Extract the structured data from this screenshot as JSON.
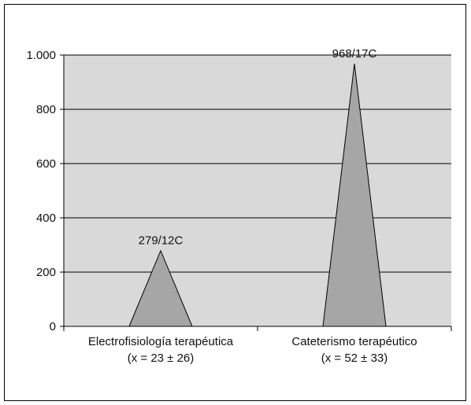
{
  "chart_data": {
    "type": "area",
    "categories": [
      {
        "line1": "Electrofisiología terapéutica",
        "line2": "(x = 23 ± 26)"
      },
      {
        "line1": "Cateterismo terapéutico",
        "line2": "(x = 52 ± 33)"
      }
    ],
    "values": [
      279,
      968
    ],
    "data_labels": [
      "279/12C",
      "968/17C"
    ],
    "yticks": [
      0,
      200,
      400,
      600,
      800,
      1000
    ],
    "ytick_labels": [
      "0",
      "200",
      "400",
      "600",
      "800",
      "1.000"
    ],
    "ylim": [
      0,
      1000
    ],
    "grid": true,
    "title": "",
    "xlabel": "",
    "ylabel": "",
    "colors": {
      "plot_background": "#d9d9d9",
      "fill": "#a6a6a6",
      "stroke": "#000000",
      "gridline": "#000000"
    }
  }
}
